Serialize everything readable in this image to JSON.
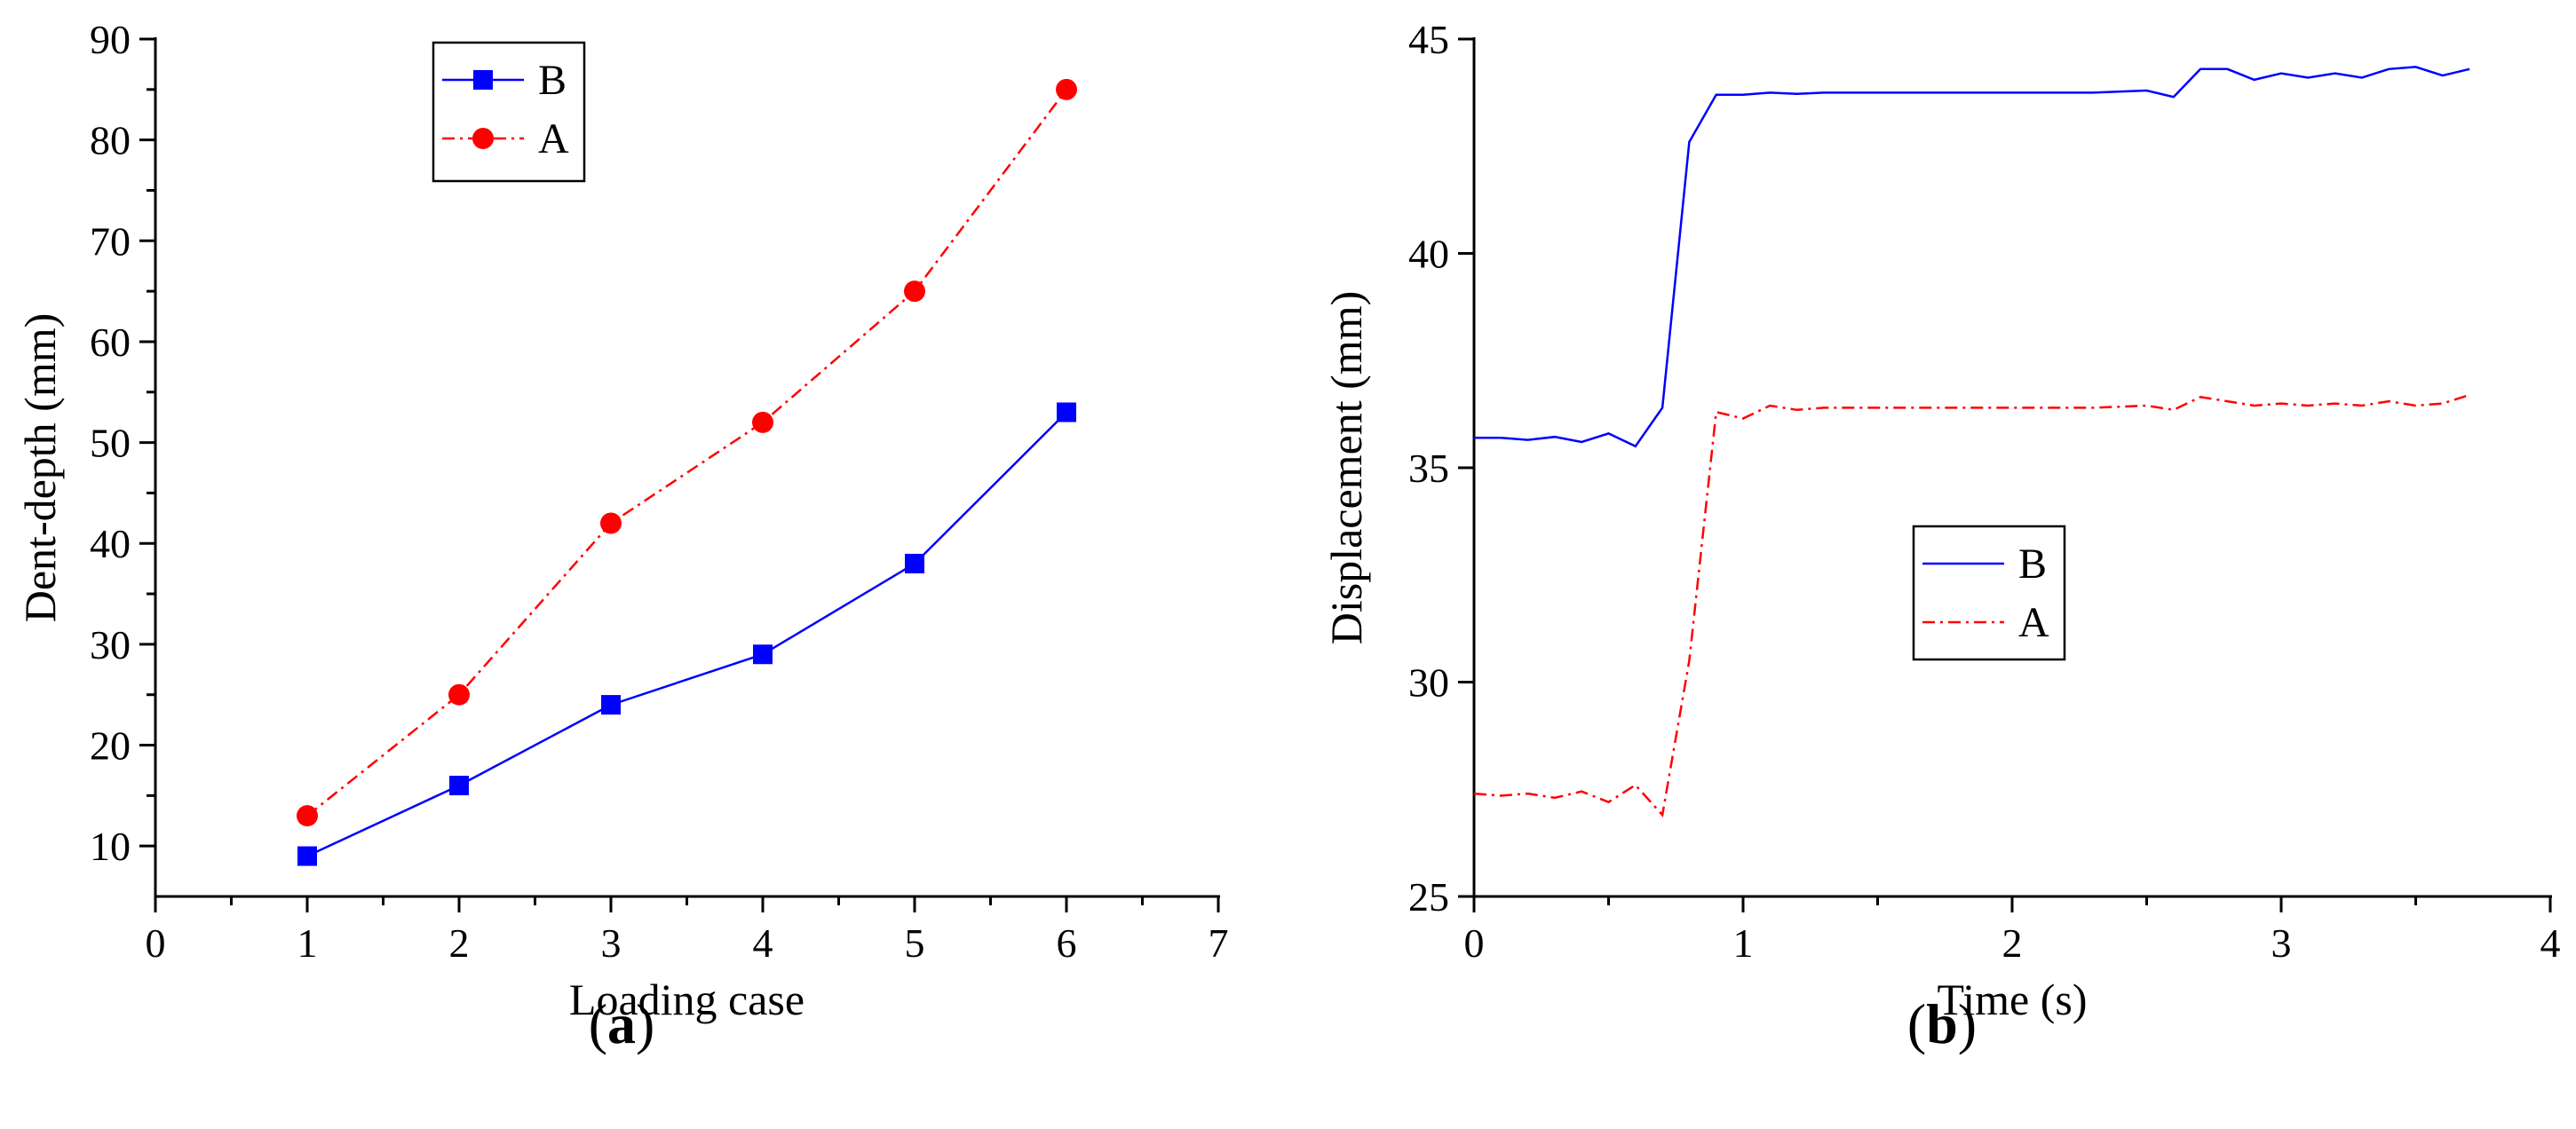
{
  "chart_data": [
    {
      "type": "line",
      "panel_label": "a",
      "title": "",
      "xlabel": "Loading case",
      "ylabel": "Dent-depth (mm)",
      "xlim": [
        0,
        7
      ],
      "ylim": [
        5,
        90
      ],
      "xticks": [
        0,
        1,
        2,
        3,
        4,
        5,
        6,
        7
      ],
      "yticks": [
        10,
        20,
        30,
        40,
        50,
        60,
        70,
        80,
        90
      ],
      "xtick_labels": [
        "0",
        "1",
        "2",
        "3",
        "4",
        "5",
        "6",
        "7"
      ],
      "ytick_labels": [
        "10",
        "20",
        "30",
        "40",
        "50",
        "60",
        "70",
        "80",
        "90"
      ],
      "legend_position": "top-center",
      "grid": false,
      "series": [
        {
          "name": "B",
          "color": "#0000ff",
          "line": "solid",
          "marker": "square",
          "x": [
            1,
            2,
            3,
            4,
            5,
            6
          ],
          "values": [
            9,
            16,
            24,
            29,
            38,
            53
          ]
        },
        {
          "name": "A",
          "color": "#ff0000",
          "line": "dashdot",
          "marker": "circle",
          "x": [
            1,
            2,
            3,
            4,
            5,
            6
          ],
          "values": [
            13,
            25,
            42,
            52,
            65,
            85
          ]
        }
      ]
    },
    {
      "type": "line",
      "panel_label": "b",
      "title": "",
      "xlabel": "Time (s)",
      "ylabel": "Displacement (mm)",
      "xlim": [
        0,
        4
      ],
      "ylim": [
        25,
        45
      ],
      "xticks": [
        0,
        1,
        2,
        3,
        4
      ],
      "yticks": [
        25,
        30,
        35,
        40,
        45
      ],
      "xtick_labels": [
        "0",
        "1",
        "2",
        "3",
        "4"
      ],
      "ytick_labels": [
        "25",
        "30",
        "35",
        "40",
        "45"
      ],
      "legend_position": "center",
      "grid": false,
      "series": [
        {
          "name": "B",
          "color": "#0000ff",
          "line": "solid",
          "marker": "none",
          "x": [
            0,
            0.1,
            0.2,
            0.3,
            0.4,
            0.5,
            0.6,
            0.7,
            0.8,
            0.9,
            1.0,
            1.1,
            1.2,
            1.3,
            1.5,
            1.7,
            2.0,
            2.3,
            2.5,
            2.6,
            2.7,
            2.8,
            2.9,
            3.0,
            3.1,
            3.2,
            3.3,
            3.4,
            3.5,
            3.6,
            3.7
          ],
          "values": [
            35.7,
            35.7,
            35.65,
            35.72,
            35.6,
            35.8,
            35.5,
            36.4,
            42.6,
            43.7,
            43.7,
            43.75,
            43.72,
            43.75,
            43.75,
            43.75,
            43.75,
            43.75,
            43.8,
            43.65,
            44.3,
            44.3,
            44.05,
            44.2,
            44.1,
            44.2,
            44.1,
            44.3,
            44.35,
            44.15,
            44.3
          ]
        },
        {
          "name": "A",
          "color": "#ff0000",
          "line": "dashdot",
          "marker": "none",
          "x": [
            0,
            0.1,
            0.2,
            0.3,
            0.4,
            0.5,
            0.6,
            0.7,
            0.8,
            0.9,
            1.0,
            1.1,
            1.2,
            1.3,
            1.5,
            1.7,
            2.0,
            2.3,
            2.5,
            2.6,
            2.7,
            2.8,
            2.9,
            3.0,
            3.1,
            3.2,
            3.3,
            3.4,
            3.5,
            3.6,
            3.7
          ],
          "values": [
            27.4,
            27.35,
            27.4,
            27.3,
            27.45,
            27.2,
            27.6,
            26.9,
            30.5,
            36.3,
            36.15,
            36.45,
            36.35,
            36.4,
            36.4,
            36.4,
            36.4,
            36.4,
            36.45,
            36.35,
            36.65,
            36.55,
            36.45,
            36.5,
            36.45,
            36.5,
            36.45,
            36.55,
            36.45,
            36.5,
            36.7
          ]
        }
      ]
    }
  ]
}
